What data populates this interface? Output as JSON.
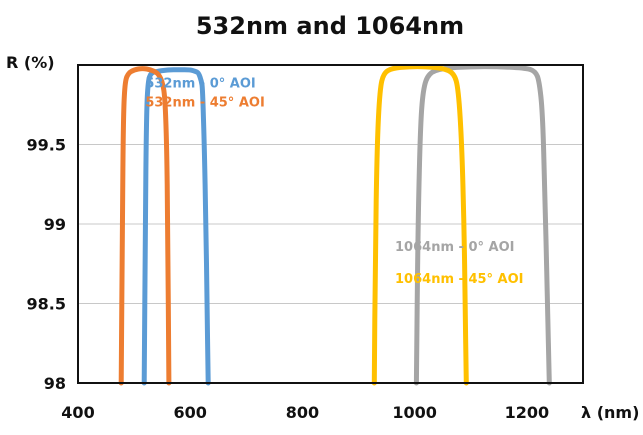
{
  "chart_data": {
    "type": "line",
    "title": "532nm and 1064nm",
    "ylabel": "R (%)",
    "xlabel": "λ (nm)",
    "xlim": [
      400,
      1300
    ],
    "ylim": [
      98,
      100
    ],
    "x_ticks": [
      400,
      600,
      800,
      1000,
      1200
    ],
    "x_tick_labels": [
      "400",
      "600",
      "800",
      "1000",
      "1200"
    ],
    "y_ticks": [
      98,
      98.5,
      99,
      99.5
    ],
    "y_tick_labels": [
      "98",
      "98.5",
      "99",
      "99.5"
    ],
    "grid": "horizontal",
    "series": [
      {
        "name": "532nm - 0° AOI",
        "color": "#5b9bd5",
        "x": [
          518,
          520,
          522,
          525,
          530,
          540,
          560,
          580,
          600,
          610,
          615,
          620,
          622,
          625,
          628,
          630,
          632
        ],
        "y": [
          98.0,
          99.0,
          99.7,
          99.9,
          99.95,
          99.96,
          99.97,
          99.97,
          99.97,
          99.96,
          99.95,
          99.9,
          99.85,
          99.5,
          99.0,
          98.5,
          98.0
        ]
      },
      {
        "name": "532nm - 45° AOI",
        "color": "#ed7d31",
        "x": [
          477,
          479,
          481,
          484,
          490,
          500,
          515,
          530,
          542,
          550,
          555,
          558,
          560,
          562
        ],
        "y": [
          98.0,
          99.0,
          99.7,
          99.9,
          99.95,
          99.97,
          99.98,
          99.97,
          99.95,
          99.9,
          99.8,
          99.5,
          99.0,
          98.0
        ]
      },
      {
        "name": "1064nm - 0° AOI",
        "color": "#a5a5a5",
        "x": [
          1003,
          1006,
          1010,
          1015,
          1025,
          1050,
          1100,
          1150,
          1200,
          1215,
          1222,
          1228,
          1232,
          1236,
          1240
        ],
        "y": [
          98.0,
          99.0,
          99.6,
          99.85,
          99.95,
          99.98,
          99.99,
          99.99,
          99.98,
          99.96,
          99.9,
          99.7,
          99.2,
          98.6,
          98.0
        ]
      },
      {
        "name": "1064nm - 45° AOI",
        "color": "#ffc000",
        "x": [
          928,
          930,
          933,
          938,
          945,
          960,
          990,
          1020,
          1050,
          1070,
          1078,
          1084,
          1088,
          1090,
          1092
        ],
        "y": [
          98.0,
          98.8,
          99.5,
          99.85,
          99.95,
          99.98,
          99.99,
          99.99,
          99.98,
          99.95,
          99.85,
          99.5,
          99.0,
          98.5,
          98.0
        ]
      }
    ],
    "legend": [
      {
        "label": "532nm - 0° AOI",
        "color": "#5b9bd5",
        "x": 520,
        "y": 99.86
      },
      {
        "label": "532nm - 45° AOI",
        "color": "#ed7d31",
        "x": 520,
        "y": 99.74
      },
      {
        "label": "1064nm - 0° AOI",
        "color": "#a5a5a5",
        "x": 965,
        "y": 98.83
      },
      {
        "label": "1064nm - 45° AOI",
        "color": "#ffc000",
        "x": 965,
        "y": 98.63
      }
    ]
  }
}
